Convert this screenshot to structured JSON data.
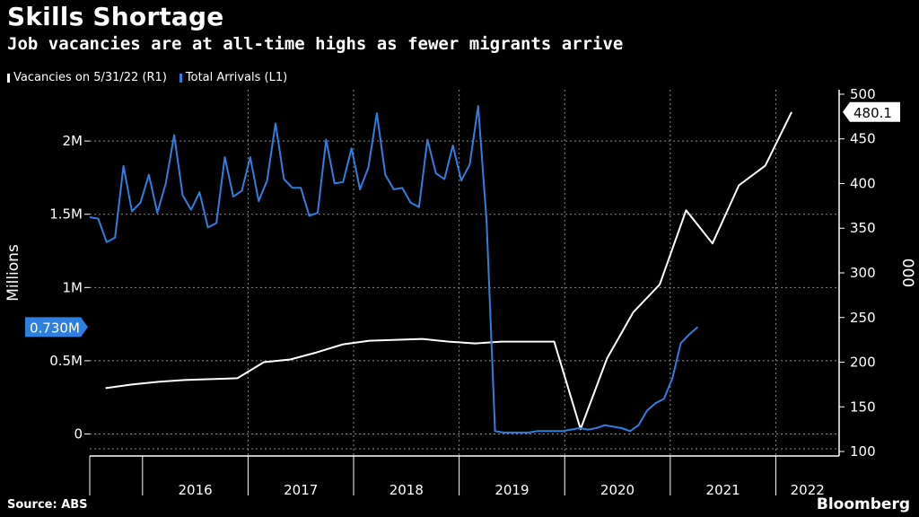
{
  "header": {
    "title": "Skills Shortage",
    "subtitle": "Job vacancies are at all-time highs as fewer migrants arrive"
  },
  "footer": {
    "source": "Source: ABS",
    "brand": "Bloomberg"
  },
  "colors": {
    "background": "#000000",
    "vacancies": "#ffffff",
    "arrivals": "#2f7fe0",
    "grid": "#8a8a8a"
  },
  "chart_data": {
    "type": "line",
    "title": "Skills Shortage",
    "subtitle": "Job vacancies are at all-time highs as fewer migrants arrive",
    "x_range": [
      2015.5,
      2022.6
    ],
    "xticks": [
      "2016",
      "2017",
      "2018",
      "2019",
      "2020",
      "2021",
      "2022"
    ],
    "left_axis": {
      "label": "Millions",
      "ylim": [
        -0.15,
        2.35
      ],
      "ticks": [
        0,
        0.5,
        1,
        1.5,
        2
      ],
      "tick_labels": [
        "0",
        "0.5M",
        "1M",
        "1.5M",
        "2M"
      ],
      "last_value_label": "0.730M",
      "last_value": 0.73
    },
    "right_axis": {
      "label": "000",
      "ylim": [
        95,
        505
      ],
      "ticks": [
        100,
        150,
        200,
        250,
        300,
        350,
        400,
        450,
        500
      ],
      "tick_labels": [
        "100",
        "150",
        "200",
        "250",
        "300",
        "350",
        "400",
        "450",
        "500"
      ],
      "last_value_label": "480.1",
      "last_value": 480.1
    },
    "series": [
      {
        "name": "Vacancies on 5/31/22 (R1)",
        "axis": "right",
        "points": [
          [
            2015.65,
            171
          ],
          [
            2015.9,
            175
          ],
          [
            2016.15,
            178
          ],
          [
            2016.4,
            180
          ],
          [
            2016.65,
            181
          ],
          [
            2016.9,
            182
          ],
          [
            2017.15,
            200
          ],
          [
            2017.4,
            203
          ],
          [
            2017.65,
            211
          ],
          [
            2017.9,
            220
          ],
          [
            2018.15,
            224
          ],
          [
            2018.4,
            225
          ],
          [
            2018.65,
            226
          ],
          [
            2018.9,
            223
          ],
          [
            2019.15,
            221
          ],
          [
            2019.4,
            223
          ],
          [
            2019.65,
            223
          ],
          [
            2019.9,
            223
          ],
          [
            2020.15,
            125
          ],
          [
            2020.4,
            204
          ],
          [
            2020.65,
            256
          ],
          [
            2020.9,
            287
          ],
          [
            2021.15,
            370
          ],
          [
            2021.4,
            333
          ],
          [
            2021.65,
            398
          ],
          [
            2021.9,
            420
          ],
          [
            2022.15,
            480.1
          ]
        ]
      },
      {
        "name": "Total Arrivals (L1)",
        "axis": "left",
        "points": [
          [
            2015.5,
            1.48
          ],
          [
            2015.58,
            1.47
          ],
          [
            2015.66,
            1.31
          ],
          [
            2015.74,
            1.34
          ],
          [
            2015.82,
            1.83
          ],
          [
            2015.9,
            1.52
          ],
          [
            2015.98,
            1.58
          ],
          [
            2016.06,
            1.77
          ],
          [
            2016.14,
            1.51
          ],
          [
            2016.22,
            1.71
          ],
          [
            2016.3,
            2.04
          ],
          [
            2016.38,
            1.63
          ],
          [
            2016.46,
            1.53
          ],
          [
            2016.54,
            1.65
          ],
          [
            2016.62,
            1.41
          ],
          [
            2016.7,
            1.44
          ],
          [
            2016.78,
            1.89
          ],
          [
            2016.86,
            1.62
          ],
          [
            2016.94,
            1.66
          ],
          [
            2017.02,
            1.89
          ],
          [
            2017.1,
            1.59
          ],
          [
            2017.18,
            1.73
          ],
          [
            2017.26,
            2.12
          ],
          [
            2017.34,
            1.74
          ],
          [
            2017.42,
            1.68
          ],
          [
            2017.5,
            1.68
          ],
          [
            2017.58,
            1.49
          ],
          [
            2017.66,
            1.51
          ],
          [
            2017.74,
            2.01
          ],
          [
            2017.82,
            1.71
          ],
          [
            2017.9,
            1.72
          ],
          [
            2017.98,
            1.95
          ],
          [
            2018.06,
            1.67
          ],
          [
            2018.14,
            1.82
          ],
          [
            2018.22,
            2.19
          ],
          [
            2018.3,
            1.77
          ],
          [
            2018.38,
            1.67
          ],
          [
            2018.46,
            1.68
          ],
          [
            2018.54,
            1.58
          ],
          [
            2018.62,
            1.55
          ],
          [
            2018.7,
            2.01
          ],
          [
            2018.78,
            1.78
          ],
          [
            2018.86,
            1.74
          ],
          [
            2018.94,
            1.97
          ],
          [
            2019.02,
            1.73
          ],
          [
            2019.1,
            1.84
          ],
          [
            2019.18,
            2.24
          ],
          [
            2019.26,
            1.45
          ],
          [
            2019.34,
            0.02
          ],
          [
            2019.42,
            0.01
          ],
          [
            2019.5,
            0.01
          ],
          [
            2019.58,
            0.01
          ],
          [
            2019.66,
            0.01
          ],
          [
            2019.74,
            0.02
          ],
          [
            2019.82,
            0.02
          ],
          [
            2019.9,
            0.02
          ],
          [
            2019.98,
            0.02
          ],
          [
            2020.06,
            0.03
          ],
          [
            2020.14,
            0.04
          ],
          [
            2020.22,
            0.03
          ],
          [
            2020.3,
            0.04
          ],
          [
            2020.38,
            0.06
          ],
          [
            2020.46,
            0.05
          ],
          [
            2020.54,
            0.04
          ],
          [
            2020.62,
            0.02
          ],
          [
            2020.7,
            0.06
          ],
          [
            2020.78,
            0.16
          ],
          [
            2020.86,
            0.21
          ],
          [
            2020.94,
            0.24
          ],
          [
            2021.02,
            0.38
          ],
          [
            2021.1,
            0.62
          ],
          [
            2021.18,
            0.68
          ],
          [
            2021.26,
            0.73
          ]
        ]
      }
    ]
  }
}
